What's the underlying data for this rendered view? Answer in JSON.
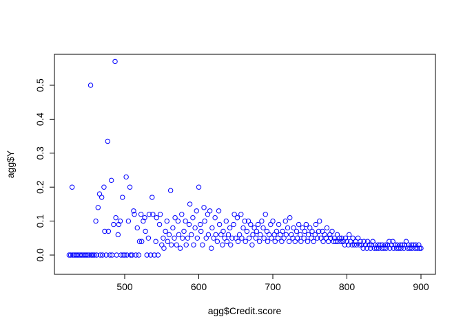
{
  "chart_data": {
    "type": "scatter",
    "xlabel": "agg$Credit.score",
    "ylabel": "agg$Y",
    "xlim": [
      415,
      910
    ],
    "ylim": [
      -0.02,
      0.6
    ],
    "x_ticks": [
      500,
      600,
      700,
      800,
      900
    ],
    "y_ticks": [
      0.0,
      0.1,
      0.2,
      0.3,
      0.4,
      0.5
    ],
    "x_tick_labels": [
      "500",
      "600",
      "700",
      "800",
      "900"
    ],
    "y_tick_labels": [
      "0.0",
      "0.1",
      "0.2",
      "0.3",
      "0.4",
      "0.5"
    ],
    "marker": "open-circle",
    "marker_color": "#0000ff",
    "grid": false,
    "points": [
      [
        425,
        0
      ],
      [
        427,
        0
      ],
      [
        429,
        0.2
      ],
      [
        430,
        0
      ],
      [
        432,
        0
      ],
      [
        434,
        0
      ],
      [
        436,
        0
      ],
      [
        438,
        0
      ],
      [
        440,
        0
      ],
      [
        442,
        0
      ],
      [
        444,
        0
      ],
      [
        446,
        0
      ],
      [
        448,
        0
      ],
      [
        450,
        0
      ],
      [
        452,
        0
      ],
      [
        454,
        0.5
      ],
      [
        455,
        0
      ],
      [
        457,
        0
      ],
      [
        459,
        0
      ],
      [
        461,
        0.1
      ],
      [
        462,
        0
      ],
      [
        464,
        0.14
      ],
      [
        466,
        0.18
      ],
      [
        467,
        0
      ],
      [
        469,
        0.17
      ],
      [
        470,
        0
      ],
      [
        472,
        0.2
      ],
      [
        473,
        0.07
      ],
      [
        475,
        0
      ],
      [
        477,
        0.335
      ],
      [
        478,
        0.07
      ],
      [
        480,
        0
      ],
      [
        482,
        0.22
      ],
      [
        483,
        0
      ],
      [
        485,
        0.09
      ],
      [
        487,
        0.57
      ],
      [
        488,
        0.11
      ],
      [
        489,
        0
      ],
      [
        491,
        0.06
      ],
      [
        492,
        0.09
      ],
      [
        494,
        0.1
      ],
      [
        495,
        0
      ],
      [
        497,
        0.17
      ],
      [
        498,
        0
      ],
      [
        500,
        0
      ],
      [
        502,
        0.23
      ],
      [
        503,
        0
      ],
      [
        505,
        0.1
      ],
      [
        507,
        0.2
      ],
      [
        508,
        0
      ],
      [
        510,
        0
      ],
      [
        512,
        0.13
      ],
      [
        513,
        0.12
      ],
      [
        515,
        0
      ],
      [
        517,
        0.08
      ],
      [
        519,
        0
      ],
      [
        520,
        0.04
      ],
      [
        522,
        0.12
      ],
      [
        523,
        0.04
      ],
      [
        525,
        0.1
      ],
      [
        527,
        0.11
      ],
      [
        528,
        0.07
      ],
      [
        530,
        0
      ],
      [
        532,
        0.05
      ],
      [
        533,
        0.12
      ],
      [
        535,
        0
      ],
      [
        537,
        0.17
      ],
      [
        538,
        0.12
      ],
      [
        540,
        0
      ],
      [
        542,
        0.04
      ],
      [
        543,
        0.11
      ],
      [
        545,
        0
      ],
      [
        547,
        0.09
      ],
      [
        548,
        0.12
      ],
      [
        550,
        0.03
      ],
      [
        552,
        0.05
      ],
      [
        553,
        0.02
      ],
      [
        555,
        0.07
      ],
      [
        557,
        0.1
      ],
      [
        558,
        0.04
      ],
      [
        560,
        0.06
      ],
      [
        562,
        0.19
      ],
      [
        563,
        0.03
      ],
      [
        565,
        0.08
      ],
      [
        567,
        0.05
      ],
      [
        568,
        0.11
      ],
      [
        570,
        0.03
      ],
      [
        572,
        0.1
      ],
      [
        573,
        0.06
      ],
      [
        575,
        0.02
      ],
      [
        577,
        0.12
      ],
      [
        578,
        0.05
      ],
      [
        580,
        0.07
      ],
      [
        582,
        0.1
      ],
      [
        583,
        0.03
      ],
      [
        585,
        0.05
      ],
      [
        587,
        0.09
      ],
      [
        588,
        0.15
      ],
      [
        590,
        0.06
      ],
      [
        592,
        0.11
      ],
      [
        593,
        0.03
      ],
      [
        595,
        0.08
      ],
      [
        597,
        0.13
      ],
      [
        598,
        0.05
      ],
      [
        600,
        0.2
      ],
      [
        602,
        0.09
      ],
      [
        603,
        0.07
      ],
      [
        605,
        0.03
      ],
      [
        607,
        0.14
      ],
      [
        608,
        0.1
      ],
      [
        610,
        0.05
      ],
      [
        612,
        0.12
      ],
      [
        613,
        0.06
      ],
      [
        615,
        0.13
      ],
      [
        617,
        0.02
      ],
      [
        618,
        0.08
      ],
      [
        620,
        0.05
      ],
      [
        622,
        0.11
      ],
      [
        623,
        0.06
      ],
      [
        625,
        0.04
      ],
      [
        627,
        0.13
      ],
      [
        628,
        0.09
      ],
      [
        630,
        0.06
      ],
      [
        632,
        0.03
      ],
      [
        633,
        0.07
      ],
      [
        635,
        0.05
      ],
      [
        637,
        0.1
      ],
      [
        638,
        0.04
      ],
      [
        640,
        0.06
      ],
      [
        642,
        0.08
      ],
      [
        643,
        0.03
      ],
      [
        645,
        0.05
      ],
      [
        647,
        0.09
      ],
      [
        648,
        0.12
      ],
      [
        650,
        0.05
      ],
      [
        652,
        0.11
      ],
      [
        653,
        0.04
      ],
      [
        655,
        0.06
      ],
      [
        657,
        0.12
      ],
      [
        658,
        0.05
      ],
      [
        660,
        0.08
      ],
      [
        662,
        0.1
      ],
      [
        663,
        0.04
      ],
      [
        665,
        0.07
      ],
      [
        667,
        0.1
      ],
      [
        668,
        0.05
      ],
      [
        670,
        0.09
      ],
      [
        672,
        0.03
      ],
      [
        673,
        0.06
      ],
      [
        675,
        0.08
      ],
      [
        677,
        0.05
      ],
      [
        678,
        0.07
      ],
      [
        680,
        0.09
      ],
      [
        682,
        0.04
      ],
      [
        683,
        0.06
      ],
      [
        685,
        0.1
      ],
      [
        687,
        0.08
      ],
      [
        688,
        0.05
      ],
      [
        690,
        0.12
      ],
      [
        692,
        0.07
      ],
      [
        693,
        0.04
      ],
      [
        695,
        0.06
      ],
      [
        697,
        0.09
      ],
      [
        698,
        0.05
      ],
      [
        700,
        0.1
      ],
      [
        702,
        0.06
      ],
      [
        703,
        0.04
      ],
      [
        705,
        0.07
      ],
      [
        707,
        0.05
      ],
      [
        708,
        0.09
      ],
      [
        710,
        0.06
      ],
      [
        712,
        0.04
      ],
      [
        713,
        0.07
      ],
      [
        715,
        0.05
      ],
      [
        717,
        0.1
      ],
      [
        718,
        0.06
      ],
      [
        720,
        0.08
      ],
      [
        722,
        0.04
      ],
      [
        723,
        0.11
      ],
      [
        725,
        0.06
      ],
      [
        727,
        0.05
      ],
      [
        728,
        0.08
      ],
      [
        730,
        0.04
      ],
      [
        732,
        0.07
      ],
      [
        733,
        0.05
      ],
      [
        735,
        0.09
      ],
      [
        737,
        0.06
      ],
      [
        738,
        0.04
      ],
      [
        740,
        0.08
      ],
      [
        742,
        0.05
      ],
      [
        743,
        0.07
      ],
      [
        745,
        0.09
      ],
      [
        747,
        0.04
      ],
      [
        748,
        0.06
      ],
      [
        750,
        0.08
      ],
      [
        752,
        0.05
      ],
      [
        753,
        0.07
      ],
      [
        755,
        0.04
      ],
      [
        757,
        0.06
      ],
      [
        758,
        0.09
      ],
      [
        760,
        0.05
      ],
      [
        762,
        0.07
      ],
      [
        763,
        0.1
      ],
      [
        765,
        0.05
      ],
      [
        767,
        0.07
      ],
      [
        768,
        0.04
      ],
      [
        770,
        0.06
      ],
      [
        772,
        0.05
      ],
      [
        773,
        0.08
      ],
      [
        775,
        0.04
      ],
      [
        777,
        0.06
      ],
      [
        778,
        0.05
      ],
      [
        780,
        0.07
      ],
      [
        782,
        0.04
      ],
      [
        783,
        0.05
      ],
      [
        785,
        0.04
      ],
      [
        787,
        0.06
      ],
      [
        788,
        0.04
      ],
      [
        790,
        0.05
      ],
      [
        792,
        0.04
      ],
      [
        793,
        0.05
      ],
      [
        795,
        0.04
      ],
      [
        797,
        0.03
      ],
      [
        798,
        0.05
      ],
      [
        800,
        0.04
      ],
      [
        802,
        0.03
      ],
      [
        803,
        0.06
      ],
      [
        805,
        0.04
      ],
      [
        807,
        0.03
      ],
      [
        808,
        0.05
      ],
      [
        810,
        0.03
      ],
      [
        812,
        0.04
      ],
      [
        813,
        0.03
      ],
      [
        815,
        0.05
      ],
      [
        817,
        0.03
      ],
      [
        818,
        0.04
      ],
      [
        820,
        0.03
      ],
      [
        822,
        0.02
      ],
      [
        823,
        0.04
      ],
      [
        825,
        0.03
      ],
      [
        827,
        0.02
      ],
      [
        828,
        0.04
      ],
      [
        830,
        0.03
      ],
      [
        832,
        0.02
      ],
      [
        833,
        0.03
      ],
      [
        835,
        0.04
      ],
      [
        837,
        0.02
      ],
      [
        838,
        0.03
      ],
      [
        840,
        0.02
      ],
      [
        842,
        0.03
      ],
      [
        843,
        0.02
      ],
      [
        845,
        0.03
      ],
      [
        847,
        0.02
      ],
      [
        848,
        0.03
      ],
      [
        850,
        0.02
      ],
      [
        852,
        0.03
      ],
      [
        853,
        0.02
      ],
      [
        855,
        0.03
      ],
      [
        857,
        0.04
      ],
      [
        858,
        0.02
      ],
      [
        860,
        0.03
      ],
      [
        862,
        0.04
      ],
      [
        863,
        0.02
      ],
      [
        865,
        0.03
      ],
      [
        867,
        0.02
      ],
      [
        868,
        0.03
      ],
      [
        870,
        0.02
      ],
      [
        872,
        0.03
      ],
      [
        873,
        0.02
      ],
      [
        875,
        0.03
      ],
      [
        877,
        0.02
      ],
      [
        878,
        0.03
      ],
      [
        880,
        0.04
      ],
      [
        882,
        0.02
      ],
      [
        883,
        0.03
      ],
      [
        885,
        0.02
      ],
      [
        887,
        0.03
      ],
      [
        888,
        0.02
      ],
      [
        890,
        0.03
      ],
      [
        892,
        0.02
      ],
      [
        893,
        0.03
      ],
      [
        895,
        0.02
      ],
      [
        897,
        0.03
      ],
      [
        898,
        0.02
      ],
      [
        900,
        0.02
      ]
    ]
  }
}
